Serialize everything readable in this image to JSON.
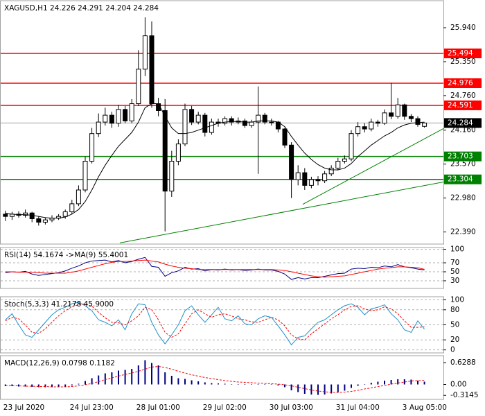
{
  "chart_data": [
    {
      "type": "candlestick",
      "title": "XAGUSD,H1  24.226 24.291 24.204 24.284",
      "categories": [
        "23 Jul 2020",
        null,
        null,
        null,
        null,
        null,
        null,
        null,
        null,
        null,
        "24 Jul 23:00",
        null,
        null,
        null,
        null,
        null,
        null,
        null,
        null,
        null,
        "28 Jul 01:00",
        null,
        null,
        null,
        null,
        null,
        null,
        null,
        null,
        null,
        "29 Jul 02:00",
        null,
        null,
        null,
        null,
        null,
        null,
        null,
        null,
        null,
        "30 Jul 03:00",
        null,
        null,
        null,
        null,
        null,
        null,
        null,
        null,
        null,
        "31 Jul 04:00",
        null,
        null,
        null,
        null,
        null,
        null,
        null,
        null,
        null,
        "3 Aug 05:00",
        null,
        null,
        null
      ],
      "open": [
        22.7,
        22.66,
        22.7,
        22.68,
        22.72,
        22.62,
        22.56,
        22.6,
        22.63,
        22.66,
        22.74,
        22.88,
        23.12,
        23.62,
        24.1,
        24.3,
        24.42,
        24.28,
        24.52,
        24.32,
        24.62,
        25.22,
        25.8,
        24.62,
        24.5,
        23.1,
        23.62,
        23.92,
        24.52,
        24.3,
        24.42,
        24.12,
        24.3,
        24.28,
        24.36,
        24.3,
        24.32,
        24.24,
        24.3,
        24.42,
        24.3,
        24.3,
        24.18,
        23.9,
        23.3,
        23.42,
        23.2,
        23.3,
        23.28,
        23.4,
        23.5,
        23.62,
        23.66,
        24.1,
        24.22,
        24.18,
        24.3,
        24.28,
        24.46,
        24.4,
        24.6,
        24.4,
        24.36,
        24.226
      ],
      "high": [
        22.76,
        22.74,
        22.75,
        22.78,
        22.74,
        22.66,
        22.64,
        22.68,
        22.7,
        22.78,
        22.95,
        23.2,
        23.7,
        24.2,
        24.45,
        24.55,
        24.48,
        24.6,
        24.58,
        24.7,
        25.55,
        26.12,
        26.05,
        24.72,
        24.7,
        23.8,
        24.0,
        24.62,
        24.58,
        24.48,
        24.46,
        24.36,
        24.36,
        24.4,
        24.4,
        24.38,
        24.36,
        24.34,
        24.92,
        24.46,
        24.36,
        24.32,
        24.2,
        23.95,
        23.55,
        23.5,
        23.35,
        23.36,
        23.45,
        23.55,
        23.68,
        23.72,
        24.16,
        24.3,
        24.28,
        24.36,
        24.34,
        24.52,
        24.98,
        24.72,
        24.62,
        24.44,
        24.4,
        24.291
      ],
      "low": [
        22.58,
        22.6,
        22.64,
        22.64,
        22.56,
        22.5,
        22.52,
        22.56,
        22.6,
        22.62,
        22.7,
        22.84,
        23.08,
        23.58,
        24.04,
        24.24,
        24.2,
        24.22,
        24.28,
        24.28,
        24.58,
        25.1,
        24.55,
        24.4,
        22.4,
        23.0,
        23.55,
        23.88,
        24.25,
        24.26,
        24.05,
        24.08,
        24.22,
        24.24,
        24.24,
        24.26,
        24.2,
        24.2,
        23.4,
        24.26,
        24.24,
        24.12,
        23.85,
        22.98,
        23.2,
        23.12,
        23.15,
        23.2,
        23.24,
        23.36,
        23.46,
        23.58,
        23.62,
        24.05,
        24.12,
        24.14,
        24.22,
        24.25,
        24.35,
        24.36,
        24.34,
        24.3,
        24.22,
        24.204
      ],
      "close": [
        22.66,
        22.7,
        22.68,
        22.72,
        22.62,
        22.56,
        22.6,
        22.63,
        22.66,
        22.74,
        22.88,
        23.12,
        23.62,
        24.1,
        24.3,
        24.42,
        24.28,
        24.52,
        24.32,
        24.62,
        25.22,
        25.8,
        24.62,
        24.5,
        23.1,
        23.62,
        23.92,
        24.52,
        24.3,
        24.42,
        24.12,
        24.3,
        24.28,
        24.36,
        24.3,
        24.32,
        24.24,
        24.3,
        24.42,
        24.3,
        24.3,
        24.18,
        23.9,
        23.3,
        23.42,
        23.2,
        23.3,
        23.28,
        23.4,
        23.5,
        23.62,
        23.66,
        24.1,
        24.22,
        24.18,
        24.3,
        24.28,
        24.46,
        24.4,
        24.6,
        24.4,
        24.36,
        24.26,
        24.284
      ],
      "up_color": "#ffffff",
      "down_color": "#000000",
      "ma": {
        "color": "#000000",
        "values": [
          22.72,
          22.7,
          22.69,
          22.69,
          22.68,
          22.66,
          22.64,
          22.63,
          22.63,
          22.65,
          22.7,
          22.78,
          22.92,
          23.12,
          23.35,
          23.55,
          23.72,
          23.88,
          24.0,
          24.12,
          24.3,
          24.55,
          24.62,
          24.62,
          24.4,
          24.2,
          24.1,
          24.1,
          24.12,
          24.16,
          24.2,
          24.24,
          24.28,
          24.3,
          24.31,
          24.31,
          24.3,
          24.3,
          24.32,
          24.32,
          24.32,
          24.3,
          24.22,
          24.05,
          23.9,
          23.76,
          23.65,
          23.56,
          23.5,
          23.47,
          23.47,
          23.5,
          23.58,
          23.7,
          23.8,
          23.9,
          23.98,
          24.06,
          24.12,
          24.2,
          24.25,
          24.28,
          24.29,
          24.3
        ]
      },
      "ylim": [
        22.18,
        26.41
      ],
      "yticks": [
        {
          "value": 25.94,
          "label": "25.940"
        },
        {
          "value": 25.35,
          "label": "25.350"
        },
        {
          "value": 24.76,
          "label": "24.760"
        },
        {
          "value": 24.16,
          "label": "24.160"
        },
        {
          "value": 23.57,
          "label": "23.570"
        },
        {
          "value": 22.98,
          "label": "22.980"
        },
        {
          "value": 22.39,
          "label": "22.390"
        }
      ],
      "grid": false,
      "levels": [
        {
          "value": 25.494,
          "color": "#ff0000"
        },
        {
          "value": 24.976,
          "color": "#ff0000"
        },
        {
          "value": 24.591,
          "color": "#ff0000"
        },
        {
          "value": 23.703,
          "color": "#008000"
        },
        {
          "value": 23.304,
          "color": "#008000"
        }
      ],
      "current": {
        "value": 24.284,
        "color": "#000000"
      },
      "trendlines": [
        {
          "x": [
            17.2,
            65.9
          ],
          "y": [
            22.2,
            23.26
          ],
          "color": "#008000"
        },
        {
          "x": [
            44.7,
            65.9
          ],
          "y": [
            22.87,
            24.19
          ],
          "color": "#008000"
        }
      ]
    },
    {
      "type": "line",
      "title": "RSI(14) 54.1674 ->MA(9) 55.4001",
      "ylim": [
        13,
        104
      ],
      "yticks": [
        100,
        70,
        50,
        30
      ],
      "grid": true,
      "series": [
        {
          "color": "#000080",
          "values": [
            48,
            50,
            49,
            51,
            45,
            42,
            44,
            46,
            48,
            52,
            58,
            63,
            70,
            74,
            75,
            76,
            72,
            75,
            70,
            73,
            78,
            82,
            62,
            60,
            40,
            48,
            52,
            60,
            56,
            57,
            52,
            55,
            54,
            56,
            54,
            55,
            53,
            54,
            56,
            54,
            54,
            51,
            45,
            33,
            37,
            34,
            37,
            37,
            40,
            43,
            46,
            47,
            56,
            58,
            57,
            60,
            59,
            63,
            61,
            66,
            61,
            59,
            56,
            54.1674
          ]
        },
        {
          "color": "#ff0000",
          "values": [
            50,
            50,
            49,
            49,
            49,
            48,
            47,
            47,
            47,
            47,
            49,
            52,
            56,
            60,
            64,
            68,
            71,
            73,
            73,
            74,
            75,
            76,
            74,
            72,
            67,
            63,
            60,
            58,
            57,
            55,
            55,
            55,
            55,
            55,
            55,
            55,
            55,
            55,
            55,
            55,
            55,
            54,
            53,
            50,
            47,
            44,
            41,
            39,
            38,
            39,
            40,
            41,
            44,
            47,
            50,
            53,
            56,
            58,
            59,
            61,
            61,
            60,
            59,
            55.4001
          ]
        }
      ]
    },
    {
      "type": "line",
      "title": "Stoch(5,3,3) 41.2178 45.9000",
      "ylim": [
        -6,
        106
      ],
      "yticks": [
        100,
        80,
        50,
        20,
        0
      ],
      "grid": true,
      "series": [
        {
          "color": "#1e90c8",
          "values": [
            60,
            72,
            50,
            30,
            25,
            40,
            55,
            70,
            80,
            85,
            92,
            95,
            88,
            78,
            60,
            55,
            48,
            60,
            40,
            72,
            92,
            90,
            55,
            30,
            12,
            30,
            50,
            78,
            88,
            70,
            55,
            70,
            85,
            62,
            58,
            68,
            52,
            50,
            62,
            68,
            65,
            48,
            30,
            10,
            25,
            28,
            42,
            55,
            60,
            70,
            80,
            88,
            92,
            85,
            70,
            82,
            85,
            90,
            72,
            60,
            40,
            35,
            58,
            41.2178
          ]
        },
        {
          "color": "#ff0000",
          "dash": true,
          "values": [
            58,
            65,
            62,
            50,
            35,
            33,
            42,
            55,
            68,
            78,
            86,
            90,
            92,
            87,
            75,
            64,
            55,
            54,
            50,
            58,
            68,
            85,
            80,
            60,
            35,
            25,
            32,
            52,
            72,
            80,
            72,
            65,
            70,
            72,
            68,
            62,
            60,
            56,
            55,
            60,
            65,
            60,
            48,
            30,
            22,
            20,
            32,
            42,
            52,
            62,
            70,
            80,
            87,
            88,
            82,
            78,
            80,
            86,
            82,
            72,
            58,
            45,
            45,
            45.9
          ]
        }
      ]
    },
    {
      "type": "bar",
      "title": "MACD(12,26,9) 0.0798 0.1182",
      "ylim": [
        -0.43,
        0.83
      ],
      "yticks": [
        0.6288,
        {
          "value": 0,
          "label": "0.00"
        },
        -0.3145
      ],
      "grid": false,
      "series": [
        {
          "color": "#000080",
          "style": "bar",
          "values": [
            -0.05,
            -0.05,
            -0.06,
            -0.06,
            -0.07,
            -0.08,
            -0.08,
            -0.08,
            -0.07,
            -0.06,
            -0.03,
            0.02,
            0.1,
            0.18,
            0.26,
            0.32,
            0.35,
            0.4,
            0.42,
            0.45,
            0.55,
            0.7,
            0.62,
            0.55,
            0.35,
            0.25,
            0.18,
            0.16,
            0.12,
            0.09,
            0.06,
            0.04,
            0.03,
            0.02,
            0.01,
            0.01,
            0.0,
            0.0,
            0.01,
            0.01,
            0.0,
            -0.03,
            -0.08,
            -0.17,
            -0.22,
            -0.27,
            -0.29,
            -0.3,
            -0.29,
            -0.26,
            -0.22,
            -0.18,
            -0.1,
            -0.04,
            0.01,
            0.05,
            0.08,
            0.11,
            0.13,
            0.15,
            0.15,
            0.14,
            0.11,
            0.0798
          ]
        },
        {
          "color": "#ff0000",
          "style": "line",
          "dash": true,
          "values": [
            -0.03,
            -0.04,
            -0.04,
            -0.05,
            -0.05,
            -0.06,
            -0.06,
            -0.07,
            -0.07,
            -0.07,
            -0.06,
            -0.04,
            -0.01,
            0.03,
            0.08,
            0.14,
            0.19,
            0.24,
            0.29,
            0.33,
            0.38,
            0.44,
            0.5,
            0.52,
            0.49,
            0.44,
            0.38,
            0.33,
            0.28,
            0.24,
            0.2,
            0.17,
            0.14,
            0.11,
            0.09,
            0.07,
            0.06,
            0.05,
            0.04,
            0.03,
            0.02,
            0.01,
            -0.01,
            -0.04,
            -0.08,
            -0.12,
            -0.16,
            -0.19,
            -0.21,
            -0.23,
            -0.23,
            -0.22,
            -0.2,
            -0.17,
            -0.13,
            -0.1,
            -0.06,
            -0.03,
            0.01,
            0.04,
            0.07,
            0.1,
            0.11,
            0.1182
          ]
        }
      ]
    }
  ]
}
